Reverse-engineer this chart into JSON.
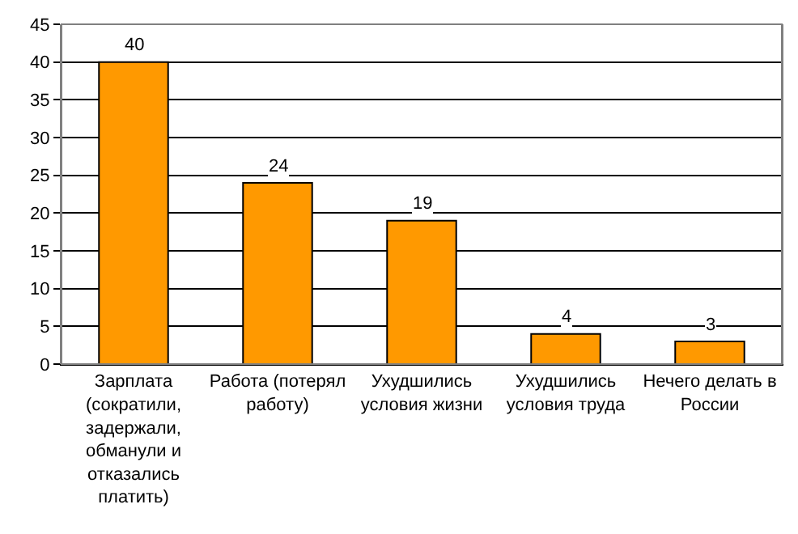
{
  "chart_data": {
    "type": "bar",
    "categories": [
      "Зарплата (сократили, задержали, обманули и отказались платить)",
      "Работа (потерял работу)",
      "Ухудшились условия жизни",
      "Ухудшились условия труда",
      "Нечего делать в России"
    ],
    "values": [
      40,
      24,
      19,
      4,
      3
    ],
    "color": "#ff9900",
    "ylim": [
      0,
      45
    ],
    "yticks": [
      0,
      5,
      10,
      15,
      20,
      25,
      30,
      35,
      40,
      45
    ],
    "grid": "y",
    "data_labels": true,
    "legend": false
  }
}
